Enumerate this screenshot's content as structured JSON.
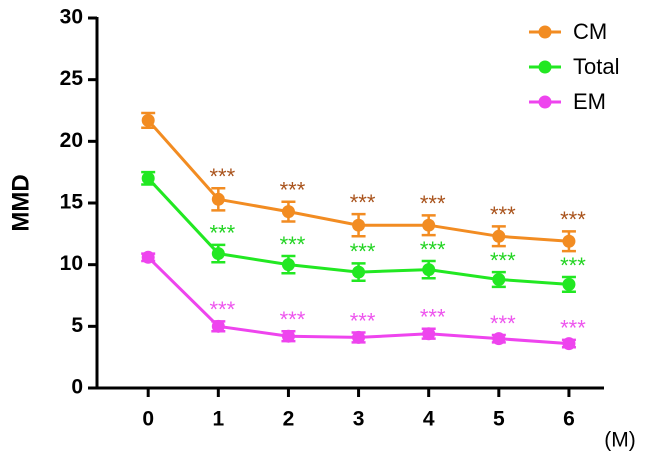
{
  "chart_data": {
    "type": "line",
    "y_label": "MMD",
    "x_label": "(M)",
    "x": [
      0,
      1,
      2,
      3,
      4,
      5,
      6
    ],
    "xlim": [
      -0.73,
      6.5
    ],
    "xticks": [
      0,
      1,
      2,
      3,
      4,
      5,
      6
    ],
    "ylim": [
      0,
      30
    ],
    "yticks": [
      0,
      5,
      10,
      15,
      20,
      25,
      30
    ],
    "grid": false,
    "legend": "upper right",
    "series": [
      {
        "name": "CM",
        "color": "#f28c22",
        "annotation_color": "#a9531c",
        "values": [
          21.7,
          15.3,
          14.3,
          13.2,
          13.2,
          12.3,
          11.9
        ],
        "errors": [
          0.6,
          0.9,
          0.8,
          0.9,
          0.8,
          0.8,
          0.8
        ],
        "annotations": [
          null,
          "***",
          "***",
          "***",
          "***",
          "***",
          "***"
        ]
      },
      {
        "name": "Total",
        "color": "#22e822",
        "annotation_color": "#22d422",
        "values": [
          17.0,
          10.9,
          10.0,
          9.4,
          9.6,
          8.8,
          8.4
        ],
        "errors": [
          0.5,
          0.7,
          0.7,
          0.7,
          0.7,
          0.6,
          0.6
        ],
        "annotations": [
          null,
          "***",
          "***",
          "***",
          "***",
          "***",
          "***"
        ]
      },
      {
        "name": "EM",
        "color": "#ee44ee",
        "annotation_color": "#ee55ee",
        "values": [
          10.6,
          5.0,
          4.2,
          4.1,
          4.4,
          4.0,
          3.6
        ],
        "errors": [
          0.3,
          0.4,
          0.4,
          0.4,
          0.4,
          0.3,
          0.3
        ],
        "annotations": [
          null,
          "***",
          "***",
          "***",
          "***",
          "***",
          "***"
        ]
      }
    ]
  }
}
